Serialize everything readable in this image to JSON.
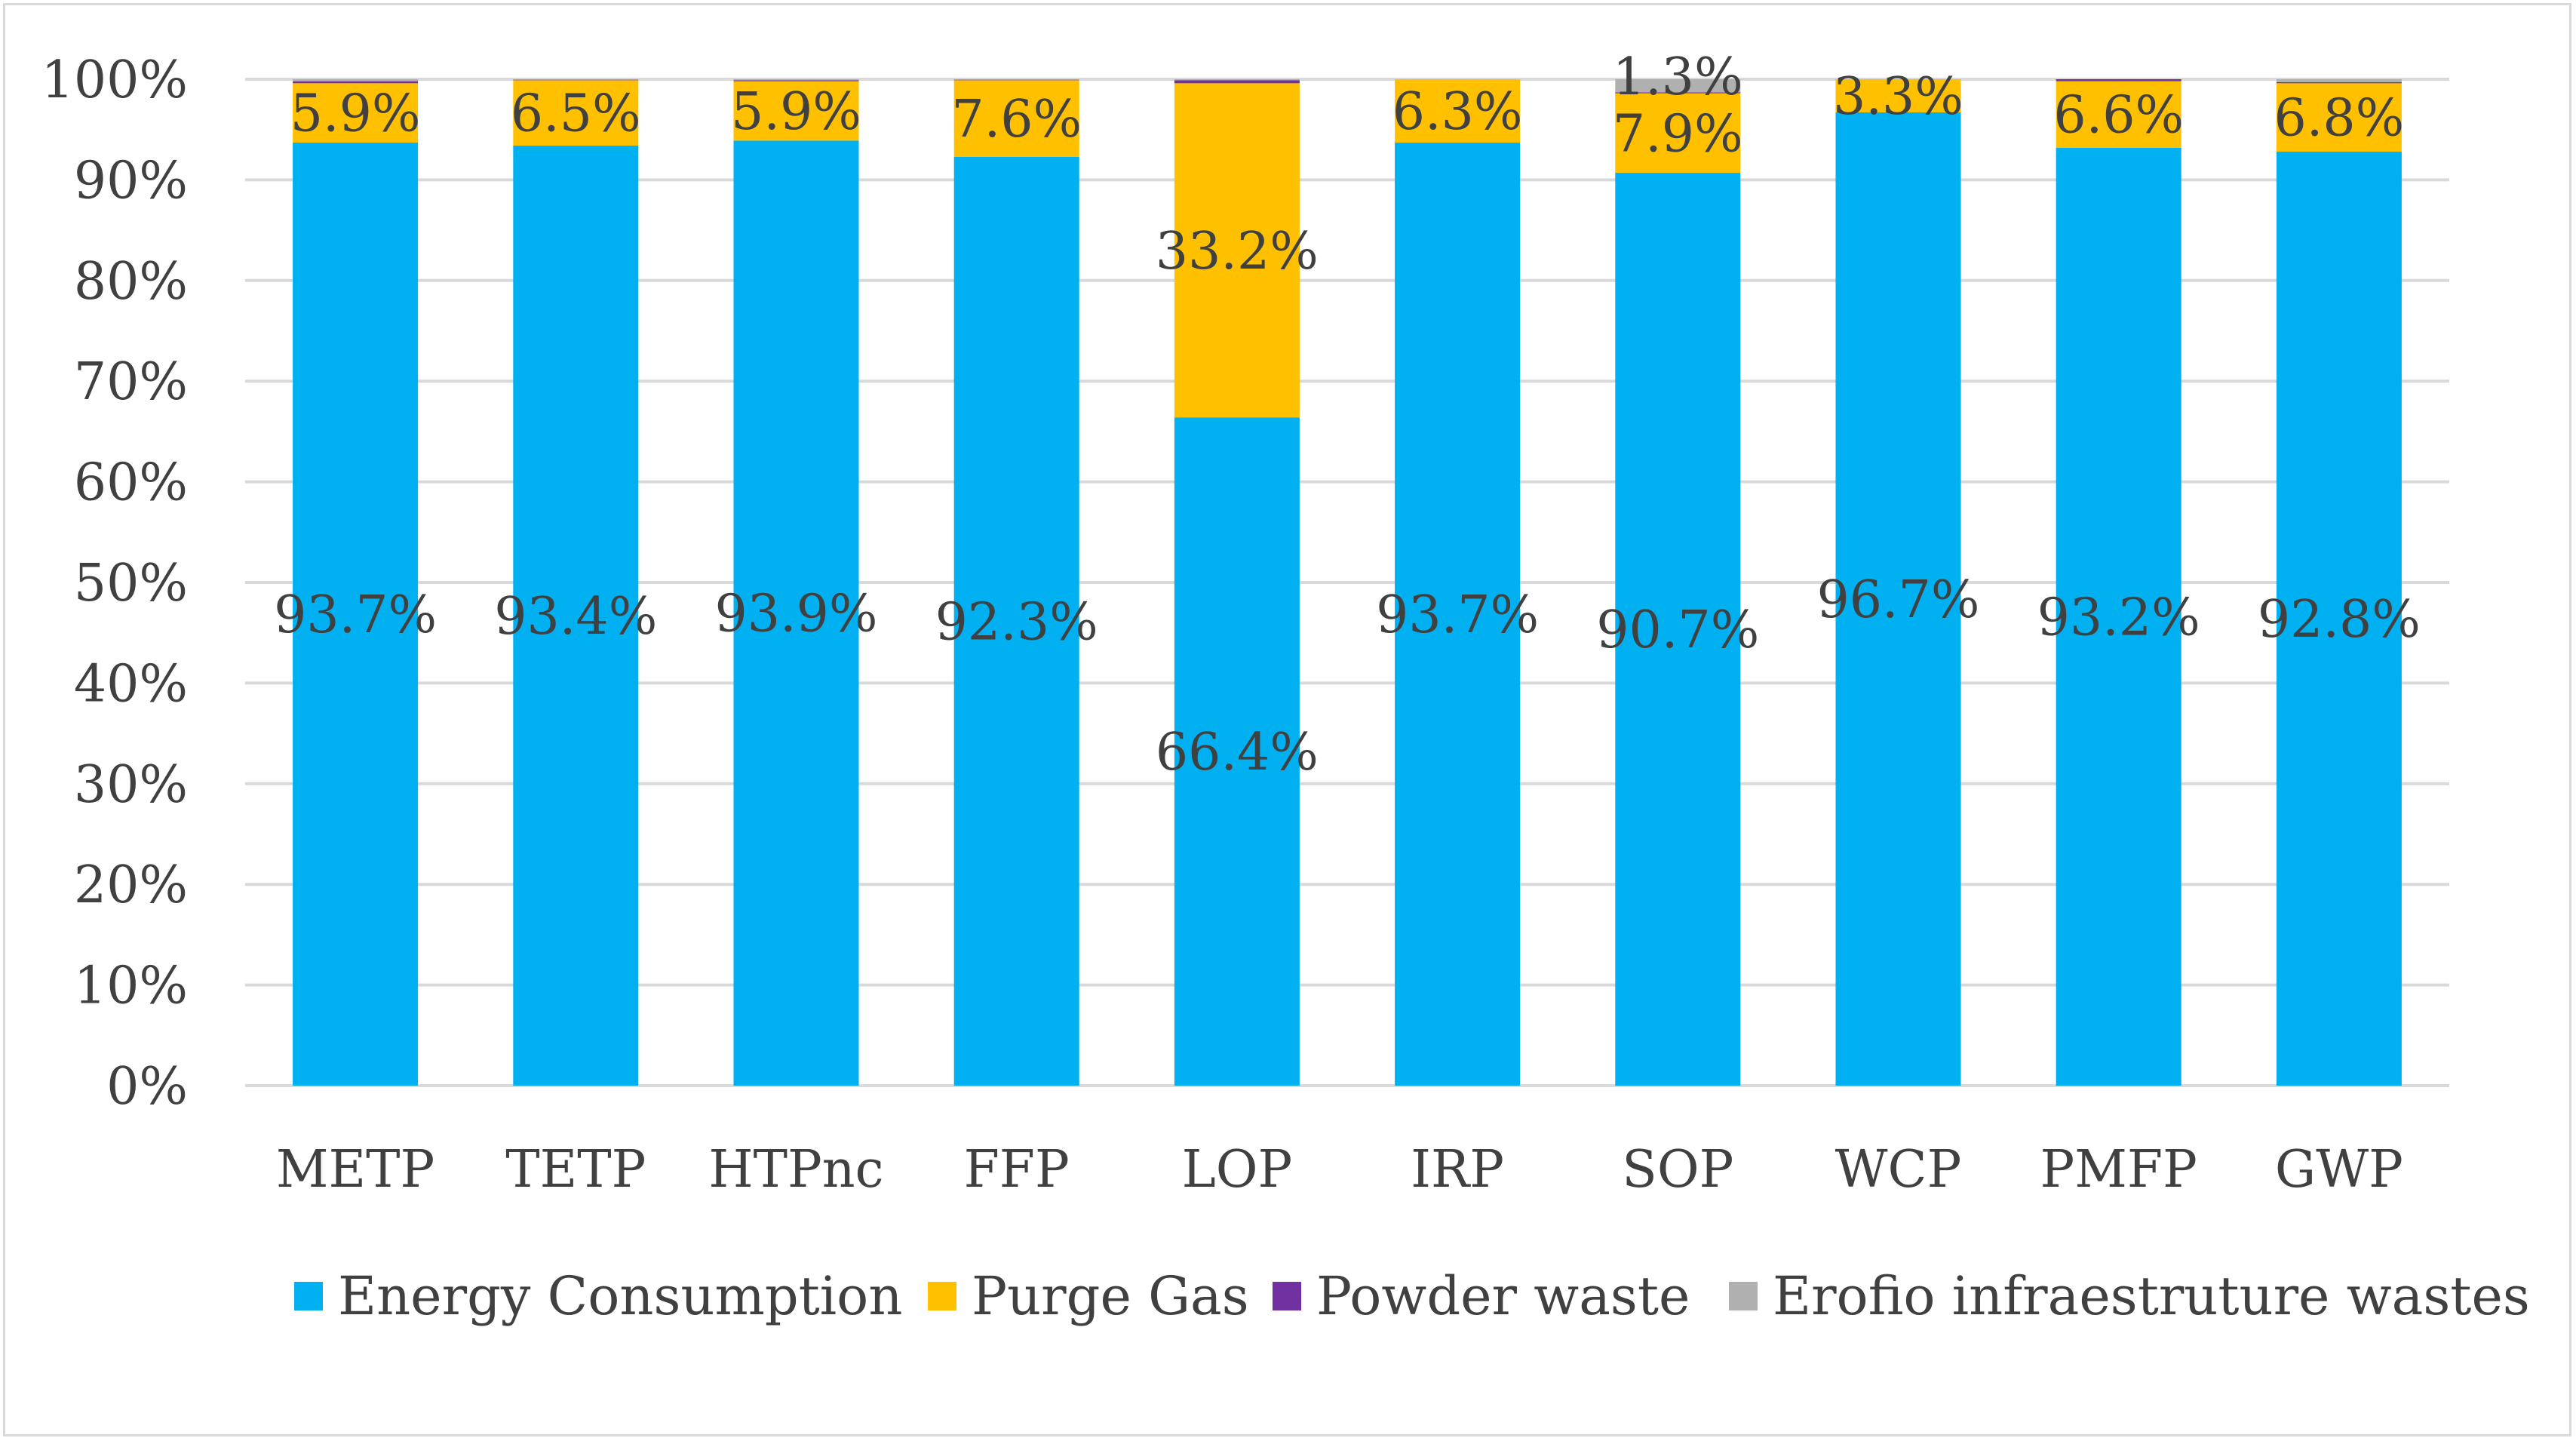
{
  "chart_data": {
    "type": "bar",
    "stacked": true,
    "percent_stacked": true,
    "title": "",
    "xlabel": "",
    "ylabel": "",
    "ylim": [
      0,
      100
    ],
    "yticks": [
      0,
      10,
      20,
      30,
      40,
      50,
      60,
      70,
      80,
      90,
      100
    ],
    "ytick_labels": [
      "0%",
      "10%",
      "20%",
      "30%",
      "40%",
      "50%",
      "60%",
      "70%",
      "80%",
      "90%",
      "100%"
    ],
    "grid": true,
    "legend_position": "bottom",
    "categories": [
      "METP",
      "TETP",
      "HTPnc",
      "FFP",
      "LOP",
      "IRP",
      "SOP",
      "WCP",
      "PMFP",
      "GWP"
    ],
    "series": [
      {
        "name": "Energy Consumption",
        "color": "#00b0f0",
        "values": [
          93.7,
          93.4,
          93.9,
          92.3,
          66.4,
          93.7,
          90.7,
          96.7,
          93.2,
          92.8
        ],
        "labels": [
          "93.7%",
          "93.4%",
          "93.9%",
          "92.3%",
          "66.4%",
          "93.7%",
          "90.7%",
          "96.7%",
          "93.2%",
          "92.8%"
        ]
      },
      {
        "name": "Purge Gas",
        "color": "#ffc000",
        "values": [
          5.9,
          6.5,
          5.9,
          7.6,
          33.2,
          6.3,
          7.9,
          3.3,
          6.6,
          6.8
        ],
        "labels": [
          "5.9%",
          "6.5%",
          "5.9%",
          "7.6%",
          "33.2%",
          "6.3%",
          "7.9%",
          "3.3%",
          "6.6%",
          "6.8%"
        ]
      },
      {
        "name": "Powder waste",
        "color": "#7030a0",
        "values": [
          0.2,
          0.05,
          0.1,
          0.05,
          0.3,
          0.0,
          0.1,
          0.0,
          0.2,
          0.1
        ],
        "labels": [
          "",
          "",
          "",
          "",
          "",
          "",
          "",
          "",
          "",
          ""
        ]
      },
      {
        "name": "Erofio infraestruture wastes",
        "color": "#b0b0b0",
        "values": [
          0.2,
          0.05,
          0.1,
          0.05,
          0.1,
          0.0,
          1.3,
          0.0,
          0.0,
          0.3
        ],
        "labels": [
          "",
          "",
          "",
          "",
          "",
          "",
          "1.3%",
          "",
          "",
          ""
        ]
      }
    ]
  }
}
